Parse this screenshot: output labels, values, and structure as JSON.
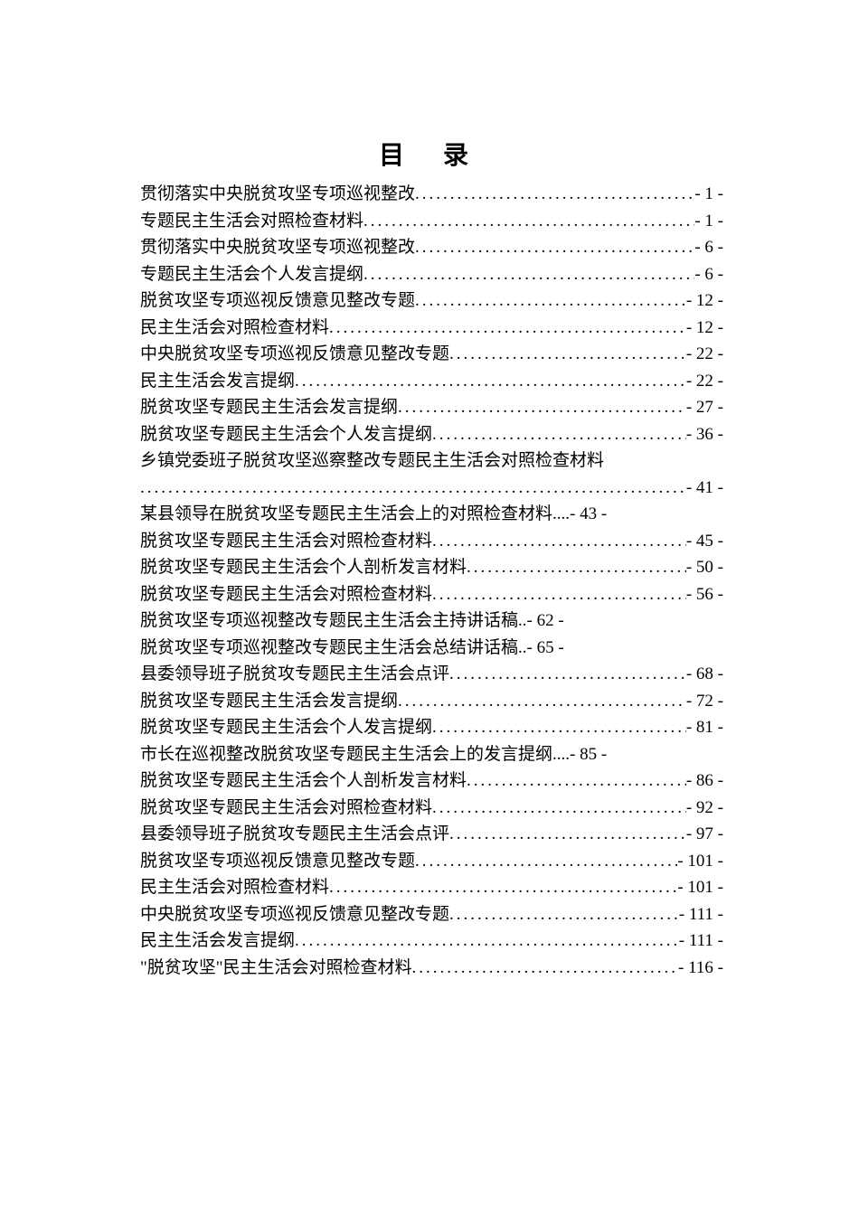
{
  "title": "目  录",
  "entries": [
    {
      "text": "贯彻落实中央脱贫攻坚专项巡视整改",
      "page": "- 1 -",
      "leader": true
    },
    {
      "text": "专题民主生活会对照检查材料",
      "page": "- 1 -",
      "leader": true
    },
    {
      "text": "贯彻落实中央脱贫攻坚专项巡视整改",
      "page": "- 6 -",
      "leader": true
    },
    {
      "text": "专题民主生活会个人发言提纲",
      "page": "- 6 -",
      "leader": true
    },
    {
      "text": "脱贫攻坚专项巡视反馈意见整改专题",
      "page": "- 12 -",
      "leader": true
    },
    {
      "text": "民主生活会对照检查材料",
      "page": "- 12 -",
      "leader": true
    },
    {
      "text": "中央脱贫攻坚专项巡视反馈意见整改专题",
      "page": "- 22 -",
      "leader": true
    },
    {
      "text": "民主生活会发言提纲",
      "page": "- 22 -",
      "leader": true
    },
    {
      "text": "脱贫攻坚专题民主生活会发言提纲",
      "page": "- 27 -",
      "leader": true
    },
    {
      "text": "脱贫攻坚专题民主生活会个人发言提纲",
      "page": "- 36 -",
      "leader": true
    },
    {
      "text": "乡镇党委班子脱贫攻坚巡察整改专题民主生活会对照检查材料",
      "page": "- 41 -",
      "leader": true,
      "wrap": true
    },
    {
      "text": "某县领导在脱贫攻坚专题民主生活会上的对照检查材料....- 43 -",
      "page": "",
      "leader": false,
      "raw": true
    },
    {
      "text": "脱贫攻坚专题民主生活会对照检查材料",
      "page": "- 45 -",
      "leader": true
    },
    {
      "text": "脱贫攻坚专题民主生活会个人剖析发言材料",
      "page": "- 50 -",
      "leader": true
    },
    {
      "text": "脱贫攻坚专题民主生活会对照检查材料",
      "page": "- 56 -",
      "leader": true
    },
    {
      "text": "脱贫攻坚专项巡视整改专题民主生活会主持讲话稿..",
      "page": "- 62 -",
      "leader": false
    },
    {
      "text": "脱贫攻坚专项巡视整改专题民主生活会总结讲话稿..",
      "page": "- 65 -",
      "leader": false
    },
    {
      "text": "县委领导班子脱贫攻专题民主生活会点评",
      "page": "- 68 -",
      "leader": true
    },
    {
      "text": "脱贫攻坚专题民主生活会发言提纲",
      "page": "- 72 -",
      "leader": true
    },
    {
      "text": "脱贫攻坚专题民主生活会个人发言提纲",
      "page": "- 81 -",
      "leader": true
    },
    {
      "text": "市长在巡视整改脱贫攻坚专题民主生活会上的发言提纲....- 85 -",
      "page": "",
      "leader": false,
      "raw": true
    },
    {
      "text": "脱贫攻坚专题民主生活会个人剖析发言材料",
      "page": "- 86 -",
      "leader": true
    },
    {
      "text": "脱贫攻坚专题民主生活会对照检查材料",
      "page": "- 92 -",
      "leader": true
    },
    {
      "text": "县委领导班子脱贫攻专题民主生活会点评",
      "page": "- 97 -",
      "leader": true
    },
    {
      "text": "脱贫攻坚专项巡视反馈意见整改专题",
      "page": "- 101 -",
      "leader": true
    },
    {
      "text": "民主生活会对照检查材料",
      "page": "- 101 -",
      "leader": true
    },
    {
      "text": "中央脱贫攻坚专项巡视反馈意见整改专题",
      "page": "- 111 -",
      "leader": true
    },
    {
      "text": "民主生活会发言提纲",
      "page": "- 111 -",
      "leader": true
    },
    {
      "text": "\"脱贫攻坚\"民主生活会对照检查材料",
      "page": "- 116 -",
      "leader": true
    }
  ]
}
